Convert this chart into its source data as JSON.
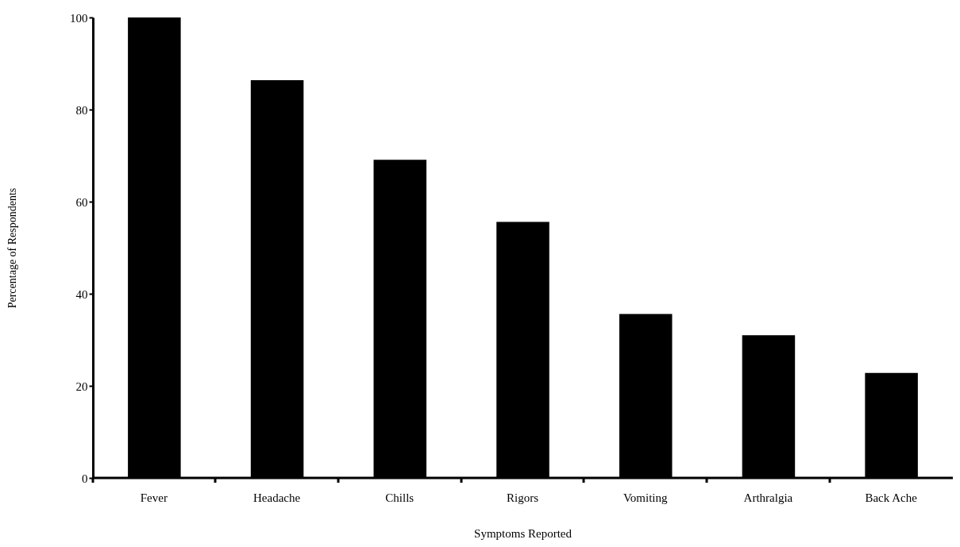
{
  "chart_data": {
    "type": "bar",
    "xlabel": "Symptoms Reported",
    "ylabel": "Percentage of Respondents",
    "categories": [
      "Fever",
      "Headache",
      "Chills",
      "Rigors",
      "Vomiting",
      "Arthralgia",
      "Back Ache"
    ],
    "values": [
      100,
      86.4,
      69.1,
      55.6,
      35.6,
      31,
      22.8
    ],
    "color": "#000000",
    "ylim": [
      0,
      100
    ],
    "yticks": [
      0,
      20,
      40,
      60,
      80,
      100
    ],
    "grid": false
  }
}
